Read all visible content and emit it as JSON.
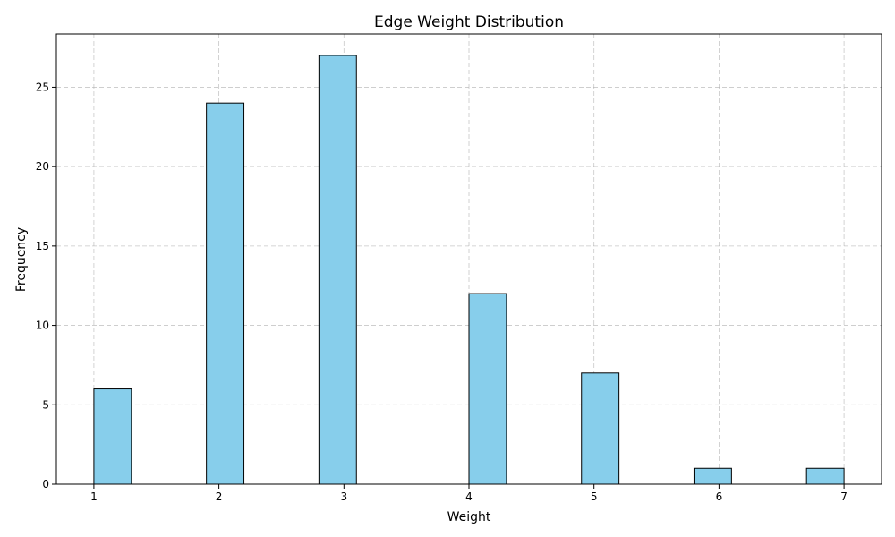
{
  "chart_data": {
    "type": "bar",
    "title": "Edge Weight Distribution",
    "xlabel": "Weight",
    "ylabel": "Frequency",
    "bin_width": 0.3,
    "bins": [
      {
        "start": 1.0,
        "end": 1.3,
        "count": 6
      },
      {
        "start": 1.9,
        "end": 2.2,
        "count": 24
      },
      {
        "start": 2.8,
        "end": 3.1,
        "count": 27
      },
      {
        "start": 4.0,
        "end": 4.3,
        "count": 12
      },
      {
        "start": 4.9,
        "end": 5.2,
        "count": 7
      },
      {
        "start": 5.8,
        "end": 6.1,
        "count": 1
      },
      {
        "start": 6.7,
        "end": 7.0,
        "count": 1
      }
    ],
    "xlim": [
      0.7,
      7.3
    ],
    "ylim": [
      0,
      28.35
    ],
    "xticks": [
      1,
      2,
      3,
      4,
      5,
      6,
      7
    ],
    "yticks": [
      0,
      5,
      10,
      15,
      20,
      25
    ],
    "grid": true,
    "colors": {
      "bar_fill": "#87CEEB",
      "bar_edge": "#000000",
      "grid": "#b0b0b0"
    }
  }
}
